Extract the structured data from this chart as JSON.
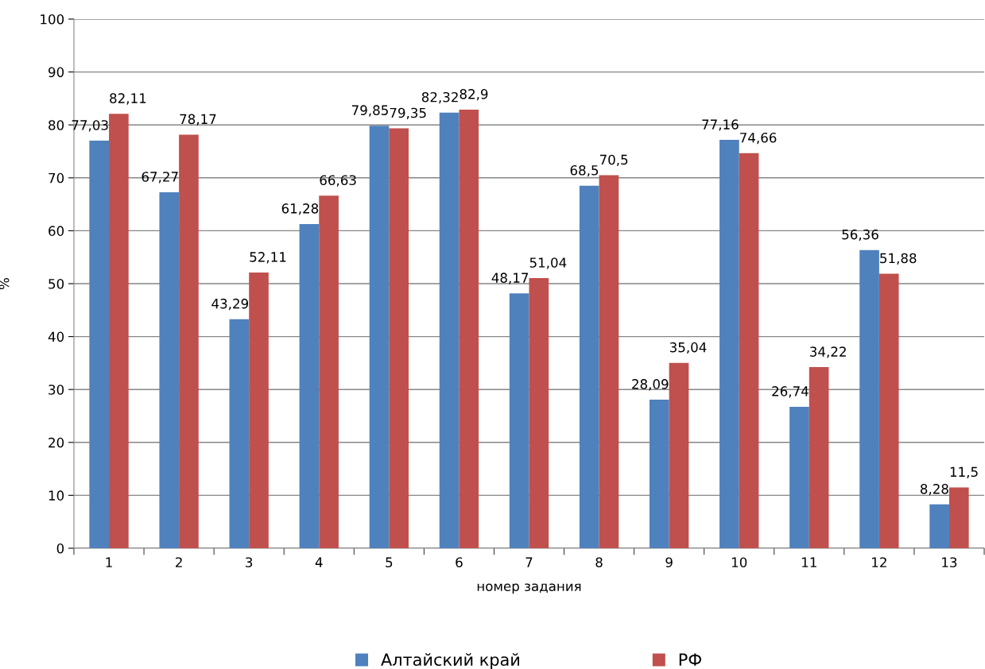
{
  "chart_data": {
    "type": "bar",
    "xlabel": "номер задания",
    "ylabel": "%",
    "categories": [
      "1",
      "2",
      "3",
      "4",
      "5",
      "6",
      "7",
      "8",
      "9",
      "10",
      "11",
      "12",
      "13"
    ],
    "series": [
      {
        "name": "Алтайский край",
        "color": "#4f81bd",
        "values": [
          77.03,
          67.27,
          43.29,
          61.28,
          79.85,
          82.32,
          48.17,
          68.5,
          28.09,
          77.16,
          26.74,
          56.36,
          8.28
        ],
        "value_labels": [
          "77,03",
          "67,27",
          "43,29",
          "61,28",
          "79,85",
          "82,32",
          "48,17",
          "68,5",
          "28,09",
          "77,16",
          "26,74",
          "56,36",
          "8,28"
        ]
      },
      {
        "name": "РФ",
        "color": "#c0504d",
        "values": [
          82.11,
          78.17,
          52.11,
          66.63,
          79.35,
          82.9,
          51.04,
          70.5,
          35.04,
          74.66,
          34.22,
          51.88,
          11.5
        ],
        "value_labels": [
          "82,11",
          "78,17",
          "52,11",
          "66,63",
          "79,35",
          "82,9",
          "51,04",
          "70,5",
          "35,04",
          "74,66",
          "34,22",
          "51,88",
          "11,5"
        ]
      }
    ],
    "ylim": [
      0,
      100
    ],
    "yticks": [
      0,
      10,
      20,
      30,
      40,
      50,
      60,
      70,
      80,
      90,
      100
    ],
    "grid": "y",
    "legend": "bottom"
  }
}
